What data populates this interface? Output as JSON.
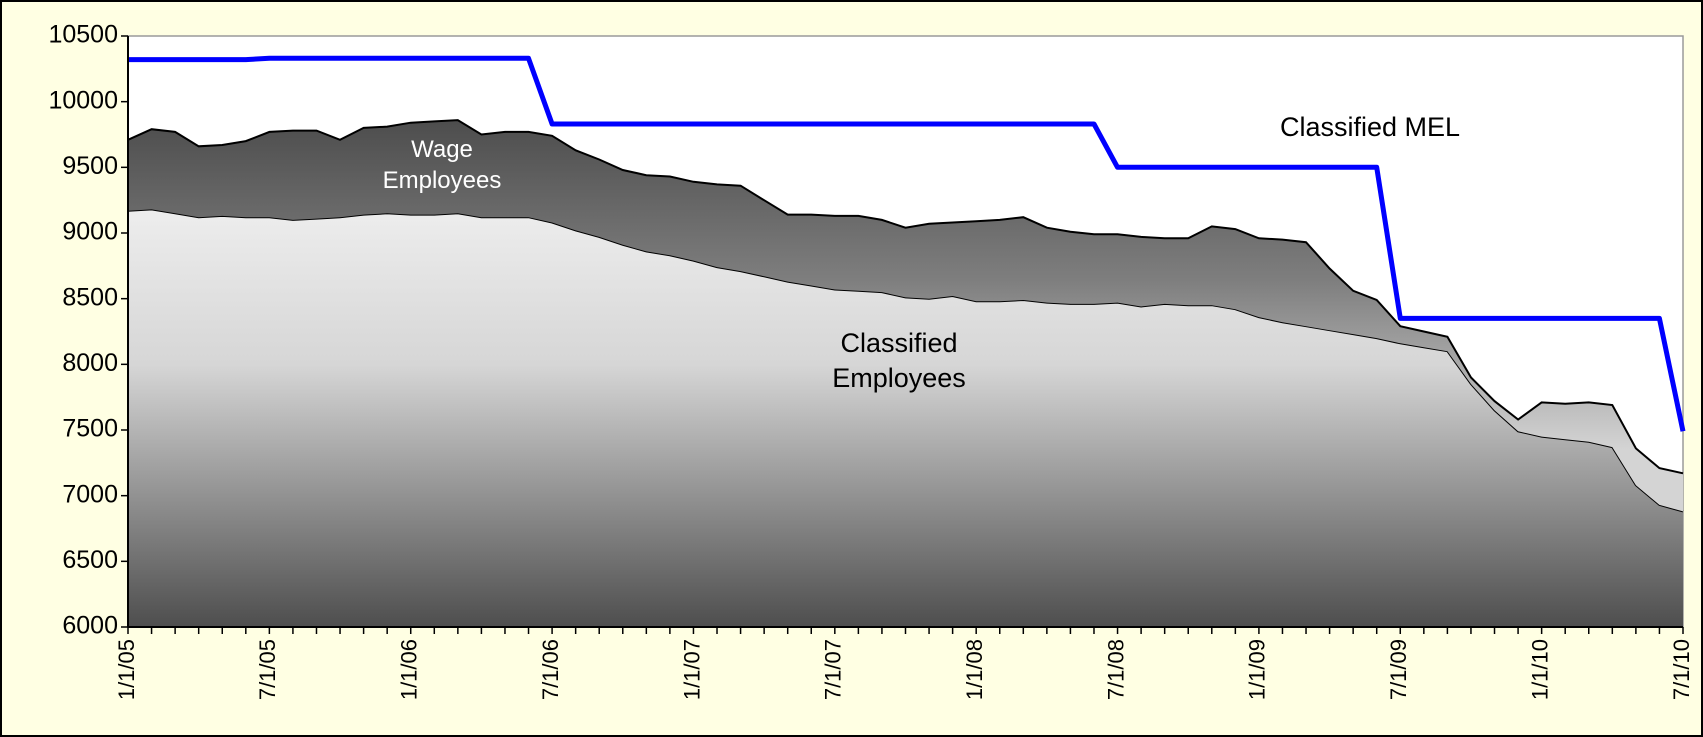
{
  "chart_data": {
    "type": "area",
    "stacked": true,
    "categories": [
      "1/1/05",
      null,
      null,
      null,
      null,
      null,
      "7/1/05",
      null,
      null,
      null,
      null,
      null,
      "1/1/06",
      null,
      null,
      null,
      null,
      null,
      "7/1/06",
      null,
      null,
      null,
      null,
      null,
      "1/1/07",
      null,
      null,
      null,
      null,
      null,
      "7/1/07",
      null,
      null,
      null,
      null,
      null,
      "1/1/08",
      null,
      null,
      null,
      null,
      null,
      "7/1/08",
      null,
      null,
      null,
      null,
      null,
      "1/1/09",
      null,
      null,
      null,
      null,
      null,
      "7/1/09",
      null,
      null,
      null,
      null,
      null,
      "1/1/10",
      null,
      null,
      null,
      null,
      null,
      "7/1/10"
    ],
    "series": [
      {
        "name": "Classified Employees",
        "color": "#d0d0d0",
        "stack": true,
        "values": [
          9170,
          9180,
          9150,
          9120,
          9130,
          9120,
          9120,
          9100,
          9110,
          9120,
          9140,
          9150,
          9140,
          9140,
          9150,
          9120,
          9120,
          9120,
          9080,
          9020,
          8970,
          8910,
          8860,
          8830,
          8790,
          8740,
          8710,
          8670,
          8630,
          8600,
          8570,
          8560,
          8550,
          8510,
          8500,
          8520,
          8480,
          8480,
          8490,
          8470,
          8460,
          8460,
          8470,
          8440,
          8460,
          8450,
          8450,
          8420,
          8360,
          8320,
          8290,
          8260,
          8230,
          8200,
          8160,
          8130,
          8100,
          7850,
          7650,
          7490,
          7450,
          7430,
          7410,
          7370,
          7080,
          6930,
          6880
        ]
      },
      {
        "name": "Wage Employees",
        "color": "#5a5a5a",
        "stack": true,
        "values": [
          540,
          610,
          620,
          540,
          540,
          580,
          650,
          680,
          670,
          590,
          660,
          660,
          700,
          710,
          710,
          630,
          650,
          650,
          660,
          610,
          590,
          570,
          580,
          600,
          600,
          630,
          650,
          580,
          510,
          540,
          560,
          570,
          550,
          530,
          570,
          560,
          610,
          620,
          630,
          570,
          550,
          530,
          520,
          530,
          500,
          510,
          600,
          610,
          600,
          630,
          640,
          470,
          330,
          290,
          130,
          120,
          110,
          50,
          70,
          90,
          260,
          270,
          300,
          320,
          280,
          280,
          290
        ]
      },
      {
        "name": "Classified MEL",
        "color": "#0000ff",
        "type": "line",
        "values": [
          10320,
          10320,
          10320,
          10320,
          10320,
          10320,
          10330,
          10330,
          10330,
          10330,
          10330,
          10330,
          10330,
          10330,
          10330,
          10330,
          10330,
          10330,
          9830,
          9830,
          9830,
          9830,
          9830,
          9830,
          9830,
          9830,
          9830,
          9830,
          9830,
          9830,
          9830,
          9830,
          9830,
          9830,
          9830,
          9830,
          9830,
          9830,
          9830,
          9830,
          9830,
          9830,
          9500,
          9500,
          9500,
          9500,
          9500,
          9500,
          9500,
          9500,
          9500,
          9500,
          9500,
          9500,
          8350,
          8350,
          8350,
          8350,
          8350,
          8350,
          8350,
          8350,
          8350,
          8350,
          8350,
          8350,
          7490
        ]
      }
    ],
    "ylim": [
      6000,
      10500
    ],
    "yticks": [
      6000,
      6500,
      7000,
      7500,
      8000,
      8500,
      9000,
      9500,
      10000,
      10500
    ],
    "grid": false
  }
}
